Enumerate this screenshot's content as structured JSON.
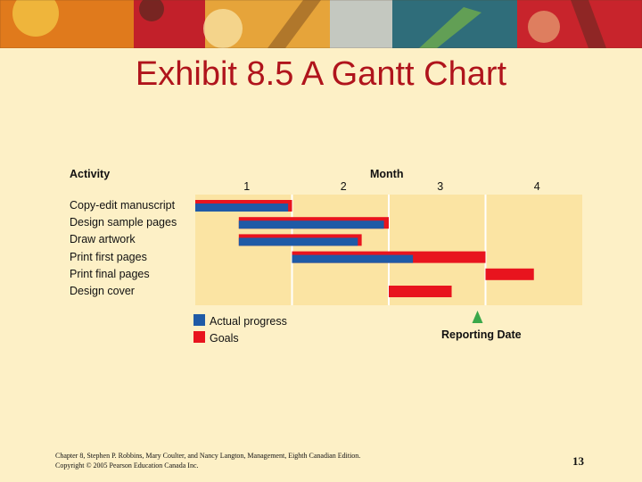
{
  "slide_title": "Exhibit 8.5 A Gantt Chart",
  "footer": {
    "line1": "Chapter 8, Stephen P. Robbins, Mary Coulter, and Nancy Langton, Management, Eighth Canadian Edition.",
    "line2": "Copyright © 2005 Pearson Education Canada Inc."
  },
  "page_number": "13",
  "colors": {
    "actual": "#1f5aa6",
    "goal": "#e8141e",
    "grid_bg": "#fbe4a3",
    "reporting_marker": "#3aa84a",
    "title": "#b0141c"
  },
  "chart_data": {
    "type": "gantt",
    "title": "",
    "xlabel": "Month",
    "ylabel": "Activity",
    "month_ticks": [
      "1",
      "2",
      "3",
      "4"
    ],
    "xlim": [
      0,
      4
    ],
    "activities": [
      {
        "name": "Copy-edit manuscript",
        "goal": [
          0,
          1
        ],
        "actual": [
          0,
          0.96
        ]
      },
      {
        "name": "Design sample pages",
        "goal": [
          0.45,
          2.0
        ],
        "actual": [
          0.45,
          1.95
        ]
      },
      {
        "name": "Draw artwork",
        "goal": [
          0.45,
          1.72
        ],
        "actual": [
          0.45,
          1.68
        ]
      },
      {
        "name": "Print first pages",
        "goal": [
          1.0,
          3.0
        ],
        "actual": [
          1.0,
          2.25
        ]
      },
      {
        "name": "Print final pages",
        "goal": [
          3.0,
          3.5
        ],
        "actual": null
      },
      {
        "name": "Design cover",
        "goal": [
          2.0,
          2.65
        ],
        "actual": null
      }
    ],
    "reporting_date": 3.0,
    "reporting_label": "Reporting Date",
    "legend": {
      "actual": "Actual progress",
      "goal": "Goals"
    }
  }
}
